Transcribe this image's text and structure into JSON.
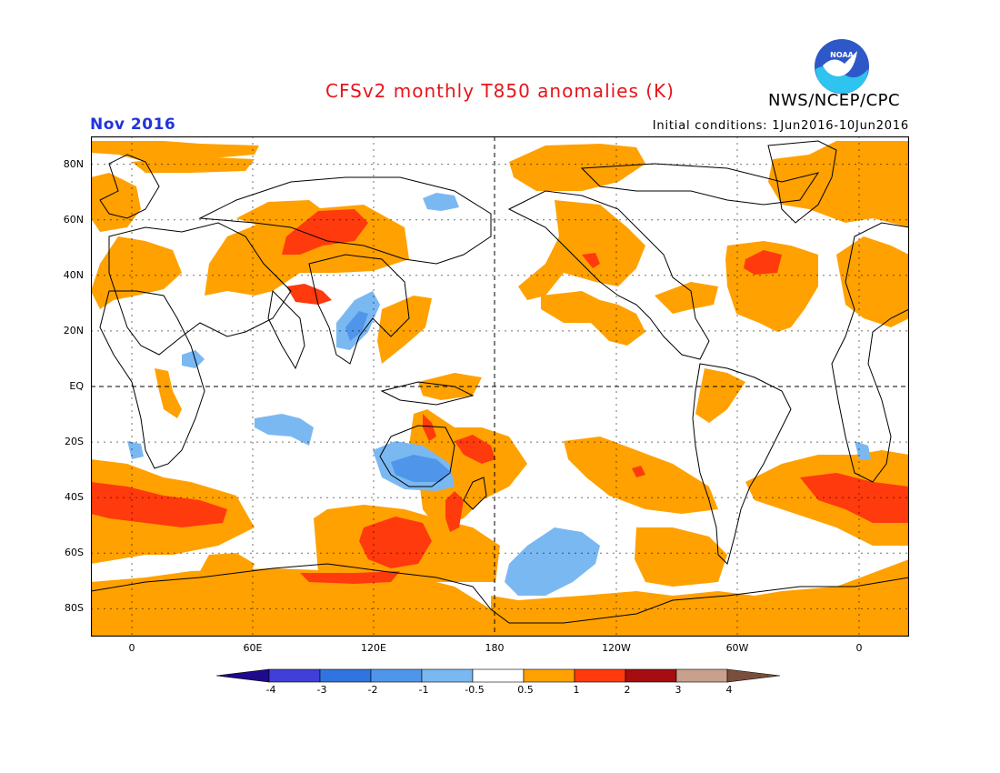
{
  "header": {
    "title": "CFSv2 monthly T850 anomalies (K)",
    "org": "NWS/NCEP/CPC",
    "logo_text": "NOAA",
    "month": "Nov 2016",
    "initial_conditions": "Initial conditions: 1Jun2016-10Jun2016"
  },
  "map": {
    "lat_labels": [
      "80N",
      "60N",
      "40N",
      "20N",
      "EQ",
      "20S",
      "40S",
      "60S",
      "80S"
    ],
    "lon_labels": [
      "0",
      "60E",
      "120E",
      "180",
      "120W",
      "60W",
      "0"
    ]
  },
  "colorbar": {
    "labels": [
      "-4",
      "-3",
      "-2",
      "-1",
      "-0.5",
      "0.5",
      "1",
      "2",
      "3",
      "4"
    ],
    "colors": [
      "#1e0a8c",
      "#4040d8",
      "#2f74e0",
      "#4f96ea",
      "#7ab8f2",
      "#ffffff",
      "#ffa100",
      "#ff3a0d",
      "#a50d10",
      "#c8a08c",
      "#7a4e3c"
    ]
  },
  "colors": {
    "warm1": "#ffa100",
    "warm2": "#ff3a0d",
    "cool1": "#7ab8f2",
    "cool2": "#4f96ea",
    "cool3": "#2f74e0"
  }
}
